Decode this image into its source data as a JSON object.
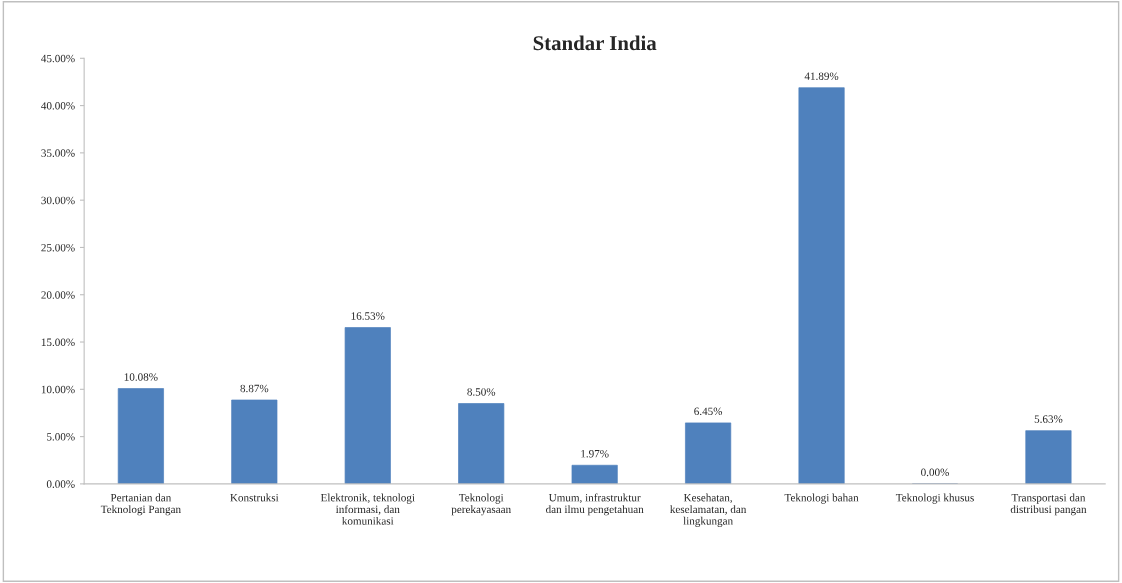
{
  "chart_data": {
    "type": "bar",
    "title": "Standar India",
    "categories": [
      "Pertanian dan\nTeknologi Pangan",
      "Konstruksi",
      "Elektronik, teknologi\ninformasi, dan\nkomunikasi",
      "Teknologi\nperekayasaan",
      "Umum, infrastruktur\ndan ilmu pengetahuan",
      "Kesehatan,\nkeselamatan, dan\nlingkungan",
      "Teknologi bahan",
      "Teknologi khusus",
      "Transportasi dan\ndistribusi pangan"
    ],
    "values": [
      10.08,
      8.87,
      16.53,
      8.5,
      1.97,
      6.45,
      41.89,
      0.0,
      5.63
    ],
    "value_labels": [
      "10.08%",
      "8.87%",
      "16.53%",
      "8.50%",
      "1.97%",
      "6.45%",
      "41.89%",
      "0.00%",
      "5.63%"
    ],
    "color": "#4f81bd",
    "ylim": [
      0,
      45
    ],
    "yticks": [
      {
        "value": 0,
        "label": "0.00%"
      },
      {
        "value": 5,
        "label": "5.00%"
      },
      {
        "value": 10,
        "label": "10.00%"
      },
      {
        "value": 15,
        "label": "15.00%"
      },
      {
        "value": 20,
        "label": "20.00%"
      },
      {
        "value": 25,
        "label": "25.00%"
      },
      {
        "value": 30,
        "label": "30.00%"
      },
      {
        "value": 35,
        "label": "35.00%"
      },
      {
        "value": 40,
        "label": "40.00%"
      },
      {
        "value": 45,
        "label": "45.00%"
      }
    ],
    "grid": false
  }
}
